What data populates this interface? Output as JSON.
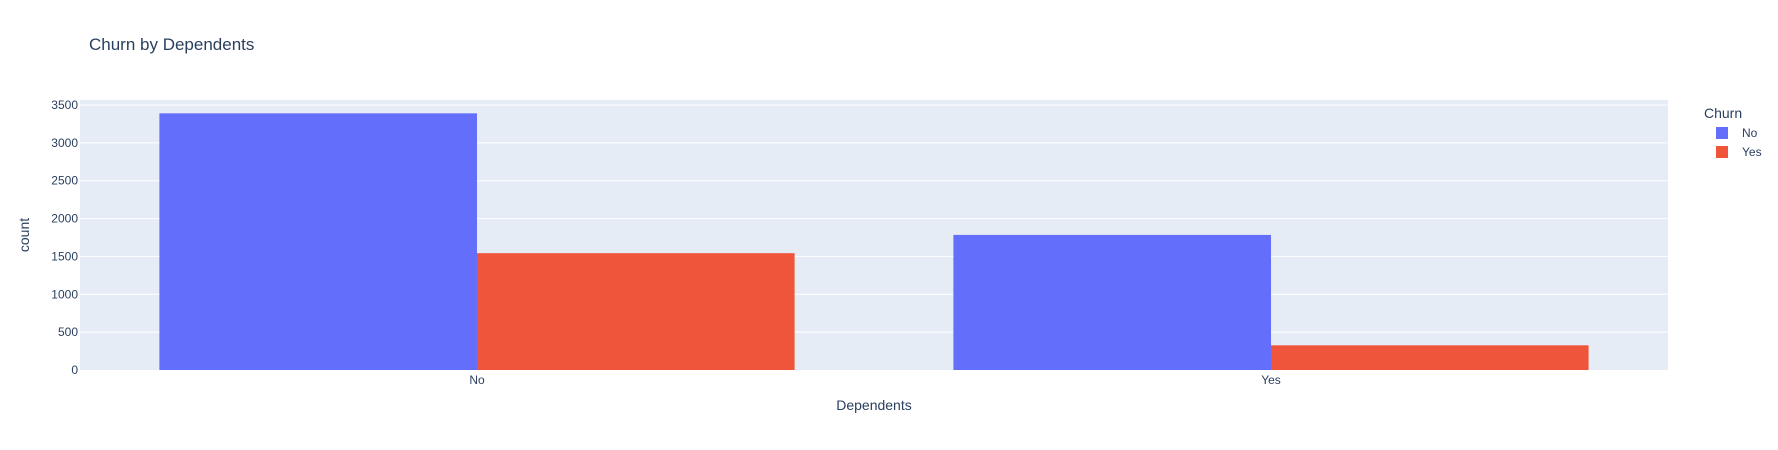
{
  "chart_data": {
    "type": "bar",
    "barmode": "group",
    "title": "Churn by Dependents",
    "xlabel": "Dependents",
    "ylabel": "count",
    "categories": [
      "No",
      "Yes"
    ],
    "ylim": [
      0,
      3500
    ],
    "yticks": [
      0,
      500,
      1000,
      1500,
      2000,
      2500,
      3000,
      3500
    ],
    "ytick_labels": [
      "0",
      "500",
      "1000",
      "1500",
      "2000",
      "2500",
      "3000",
      "3500"
    ],
    "grid": true,
    "legend": {
      "title": "Churn",
      "placement": "top-right"
    },
    "series": [
      {
        "name": "No",
        "values": [
          3390,
          1784
        ],
        "color": "#636efa"
      },
      {
        "name": "Yes",
        "values": [
          1543,
          326
        ],
        "color": "#ef553b"
      }
    ]
  }
}
